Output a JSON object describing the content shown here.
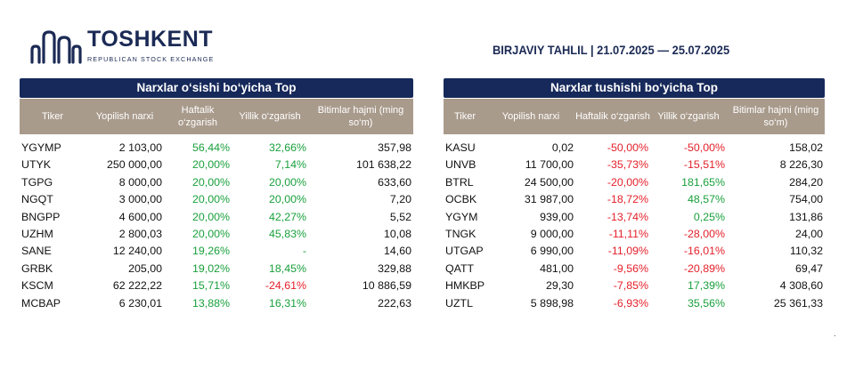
{
  "logo": {
    "name": "TOSHKENT",
    "subtitle": "REPUBLICAN STOCK EXCHANGE"
  },
  "report_title": "BIRJAVIY TAHLIL | 21.07.2025 — 25.07.2025",
  "colors": {
    "navy": "#16295a",
    "header_bg": "#a99b8c",
    "positive": "#19a03c",
    "negative": "#e5202a"
  },
  "gainers": {
    "title": "Narxlar o‘sishi bo‘yicha Top",
    "headers": [
      "Tiker",
      "Yopilish narxi",
      "Haftalik o‘zgarish",
      "Yillik o‘zgarish",
      "Bitimlar hajmi (ming so‘m)"
    ],
    "rows": [
      {
        "ticker": "YGYMP",
        "close": "2 103,00",
        "weekly": "56,44%",
        "weekly_sign": "pos",
        "yearly": "32,66%",
        "yearly_sign": "pos",
        "volume": "357,98"
      },
      {
        "ticker": "UTYK",
        "close": "250 000,00",
        "weekly": "20,00%",
        "weekly_sign": "pos",
        "yearly": "7,14%",
        "yearly_sign": "pos",
        "volume": "101 638,22"
      },
      {
        "ticker": "TGPG",
        "close": "8 000,00",
        "weekly": "20,00%",
        "weekly_sign": "pos",
        "yearly": "20,00%",
        "yearly_sign": "pos",
        "volume": "633,60"
      },
      {
        "ticker": "NGQT",
        "close": "3 000,00",
        "weekly": "20,00%",
        "weekly_sign": "pos",
        "yearly": "20,00%",
        "yearly_sign": "pos",
        "volume": "7,20"
      },
      {
        "ticker": "BNGPP",
        "close": "4 600,00",
        "weekly": "20,00%",
        "weekly_sign": "pos",
        "yearly": "42,27%",
        "yearly_sign": "pos",
        "volume": "5,52"
      },
      {
        "ticker": "UZHM",
        "close": "2 800,03",
        "weekly": "20,00%",
        "weekly_sign": "pos",
        "yearly": "45,83%",
        "yearly_sign": "pos",
        "volume": "10,08"
      },
      {
        "ticker": "SANE",
        "close": "12 240,00",
        "weekly": "19,26%",
        "weekly_sign": "pos",
        "yearly": "-",
        "yearly_sign": "pos",
        "volume": "14,60"
      },
      {
        "ticker": "GRBK",
        "close": "205,00",
        "weekly": "19,02%",
        "weekly_sign": "pos",
        "yearly": "18,45%",
        "yearly_sign": "pos",
        "volume": "329,88"
      },
      {
        "ticker": "KSCM",
        "close": "62 222,22",
        "weekly": "15,71%",
        "weekly_sign": "pos",
        "yearly": "-24,61%",
        "yearly_sign": "neg",
        "volume": "10 886,59"
      },
      {
        "ticker": "MCBAP",
        "close": "6 230,01",
        "weekly": "13,88%",
        "weekly_sign": "pos",
        "yearly": "16,31%",
        "yearly_sign": "pos",
        "volume": "222,63"
      }
    ]
  },
  "losers": {
    "title": "Narxlar tushishi bo‘yicha Top",
    "headers": [
      "Tiker",
      "Yopilish narxi",
      "Haftalik o‘zgarish",
      "Yillik o‘zgarish",
      "Bitimlar hajmi (ming so‘m)"
    ],
    "rows": [
      {
        "ticker": "KASU",
        "close": "0,02",
        "weekly": "-50,00%",
        "weekly_sign": "neg",
        "yearly": "-50,00%",
        "yearly_sign": "neg",
        "volume": "158,02"
      },
      {
        "ticker": "UNVB",
        "close": "11 700,00",
        "weekly": "-35,73%",
        "weekly_sign": "neg",
        "yearly": "-15,51%",
        "yearly_sign": "neg",
        "volume": "8 226,30"
      },
      {
        "ticker": "BTRL",
        "close": "24 500,00",
        "weekly": "-20,00%",
        "weekly_sign": "neg",
        "yearly": "181,65%",
        "yearly_sign": "pos",
        "volume": "284,20"
      },
      {
        "ticker": "OCBK",
        "close": "31 987,00",
        "weekly": "-18,72%",
        "weekly_sign": "neg",
        "yearly": "48,57%",
        "yearly_sign": "pos",
        "volume": "754,00"
      },
      {
        "ticker": "YGYM",
        "close": "939,00",
        "weekly": "-13,74%",
        "weekly_sign": "neg",
        "yearly": "0,25%",
        "yearly_sign": "pos",
        "volume": "131,86"
      },
      {
        "ticker": "TNGK",
        "close": "9 000,00",
        "weekly": "-11,11%",
        "weekly_sign": "neg",
        "yearly": "-28,00%",
        "yearly_sign": "neg",
        "volume": "24,00"
      },
      {
        "ticker": "UTGAP",
        "close": "6 990,00",
        "weekly": "-11,09%",
        "weekly_sign": "neg",
        "yearly": "-16,01%",
        "yearly_sign": "neg",
        "volume": "110,32"
      },
      {
        "ticker": "QATT",
        "close": "481,00",
        "weekly": "-9,56%",
        "weekly_sign": "neg",
        "yearly": "-20,89%",
        "yearly_sign": "neg",
        "volume": "69,47"
      },
      {
        "ticker": "HMKBP",
        "close": "29,30",
        "weekly": "-7,85%",
        "weekly_sign": "neg",
        "yearly": "17,39%",
        "yearly_sign": "pos",
        "volume": "4 308,60"
      },
      {
        "ticker": "UZTL",
        "close": "5 898,98",
        "weekly": "-6,93%",
        "weekly_sign": "neg",
        "yearly": "35,56%",
        "yearly_sign": "pos",
        "volume": "25 361,33"
      }
    ]
  }
}
